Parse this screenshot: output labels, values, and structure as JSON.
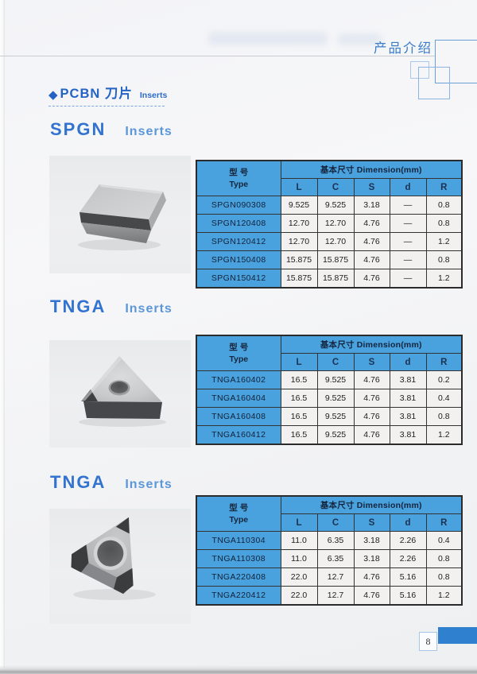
{
  "banner": {
    "title": "产品介绍"
  },
  "category_header": {
    "diamond": "◆",
    "title_zh": "PCBN 刀片",
    "title_en": "Inserts"
  },
  "sections": [
    {
      "heading": "SPGN",
      "heading_sub": "Inserts",
      "image": "square-pcbn-insert-photo",
      "table": {
        "type_header_line1": "型 号",
        "type_header_line2": "Type",
        "dim_header": "基本尺寸 Dimension(mm)",
        "columns": [
          "L",
          "C",
          "S",
          "d",
          "R"
        ],
        "rows": [
          {
            "type": "SPGN090308",
            "values": [
              "9.525",
              "9.525",
              "3.18",
              "—",
              "0.8"
            ]
          },
          {
            "type": "SPGN120408",
            "values": [
              "12.70",
              "12.70",
              "4.76",
              "—",
              "0.8"
            ]
          },
          {
            "type": "SPGN120412",
            "values": [
              "12.70",
              "12.70",
              "4.76",
              "—",
              "1.2"
            ]
          },
          {
            "type": "SPGN150408",
            "values": [
              "15.875",
              "15.875",
              "4.76",
              "—",
              "0.8"
            ]
          },
          {
            "type": "SPGN150412",
            "values": [
              "15.875",
              "15.875",
              "4.76",
              "—",
              "1.2"
            ]
          }
        ]
      }
    },
    {
      "heading": "TNGA",
      "heading_sub": "Inserts",
      "image": "triangular-pcbn-insert-photo",
      "table": {
        "type_header_line1": "型 号",
        "type_header_line2": "Type",
        "dim_header": "基本尺寸 Dimension(mm)",
        "columns": [
          "L",
          "C",
          "S",
          "d",
          "R"
        ],
        "rows": [
          {
            "type": "TNGA160402",
            "values": [
              "16.5",
              "9.525",
              "4.76",
              "3.81",
              "0.2"
            ]
          },
          {
            "type": "TNGA160404",
            "values": [
              "16.5",
              "9.525",
              "4.76",
              "3.81",
              "0.4"
            ]
          },
          {
            "type": "TNGA160408",
            "values": [
              "16.5",
              "9.525",
              "4.76",
              "3.81",
              "0.8"
            ]
          },
          {
            "type": "TNGA160412",
            "values": [
              "16.5",
              "9.525",
              "4.76",
              "3.81",
              "1.2"
            ]
          }
        ]
      }
    },
    {
      "heading": "TNGA",
      "heading_sub": "Inserts",
      "image": "triangular-tipped-pcbn-insert-photo",
      "table": {
        "type_header_line1": "型 号",
        "type_header_line2": "Type",
        "dim_header": "基本尺寸 Dimension(mm)",
        "columns": [
          "L",
          "C",
          "S",
          "d",
          "R"
        ],
        "rows": [
          {
            "type": "TNGA110304",
            "values": [
              "11.0",
              "6.35",
              "3.18",
              "2.26",
              "0.4"
            ]
          },
          {
            "type": "TNGA110308",
            "values": [
              "11.0",
              "6.35",
              "3.18",
              "2.26",
              "0.8"
            ]
          },
          {
            "type": "TNGA220408",
            "values": [
              "22.0",
              "12.7",
              "4.76",
              "5.16",
              "0.8"
            ]
          },
          {
            "type": "TNGA220412",
            "values": [
              "22.0",
              "12.7",
              "4.76",
              "5.16",
              "1.2"
            ]
          }
        ]
      }
    }
  ],
  "footer": {
    "page_number": "8"
  },
  "colors": {
    "accent_blue": "#2463c4",
    "heading_blue": "#3373d0",
    "heading_sub_blue": "#5b97d8",
    "table_header_bg": "#49a1dd",
    "banner_text": "#3b7cc9",
    "page_marker_blue": "#2f80cf"
  }
}
